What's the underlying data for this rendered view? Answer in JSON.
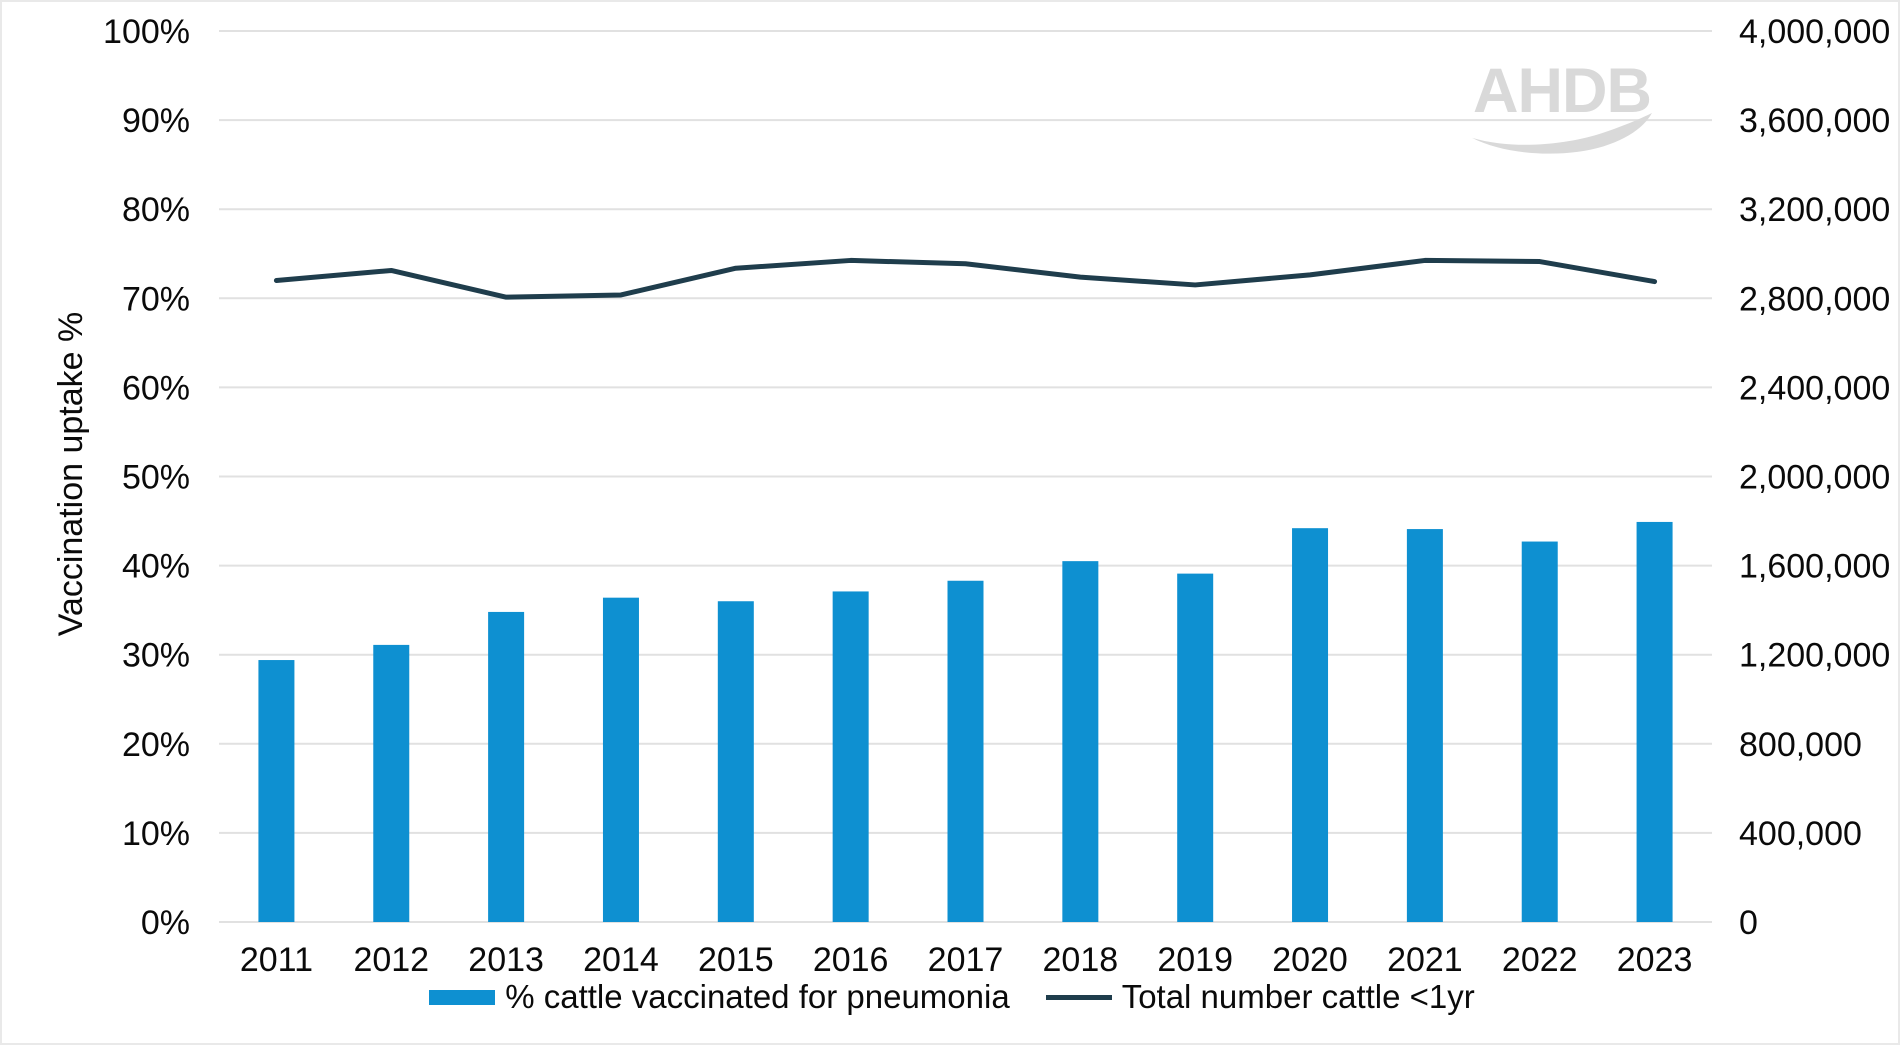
{
  "page": {
    "background": "#ffffff",
    "border_color": "#e9e9e9"
  },
  "logo": {
    "text": "AHDB",
    "color": "#d9d9d9"
  },
  "chart_data": {
    "type": "bar",
    "subtype": "bar+line combo, dual axis",
    "title": "",
    "categories": [
      "2011",
      "2012",
      "2013",
      "2014",
      "2015",
      "2016",
      "2017",
      "2018",
      "2019",
      "2020",
      "2021",
      "2022",
      "2023"
    ],
    "series": [
      {
        "name": "% cattle vaccinated for pneumonia",
        "type": "bar",
        "axis": "left",
        "color": "#0e90d1",
        "values": [
          29.4,
          31.1,
          34.8,
          36.4,
          36.0,
          37.1,
          38.3,
          40.5,
          39.1,
          44.2,
          44.1,
          42.7,
          44.9
        ]
      },
      {
        "name": "Total number cattle <1yr",
        "type": "line",
        "axis": "right",
        "color": "#1f3d4c",
        "values": [
          2880000,
          2925000,
          2805000,
          2815000,
          2935000,
          2970000,
          2955000,
          2895000,
          2860000,
          2905000,
          2970000,
          2965000,
          2875000
        ]
      }
    ],
    "left_axis": {
      "label": "Vaccination uptake %",
      "min": 0,
      "max": 100,
      "step": 10,
      "ticks": [
        "0%",
        "10%",
        "20%",
        "30%",
        "40%",
        "50%",
        "60%",
        "70%",
        "80%",
        "90%",
        "100%"
      ]
    },
    "right_axis": {
      "label": "",
      "min": 0,
      "max": 4000000,
      "step": 400000,
      "ticks": [
        "0",
        "400,000",
        "800,000",
        "1,200,000",
        "1,600,000",
        "2,000,000",
        "2,400,000",
        "2,800,000",
        "3,200,000",
        "3,600,000",
        "4,000,000"
      ]
    },
    "grid": "horizontal gridlines only",
    "gridline_color": "#e1e1e1",
    "legend_position": "bottom-center"
  }
}
